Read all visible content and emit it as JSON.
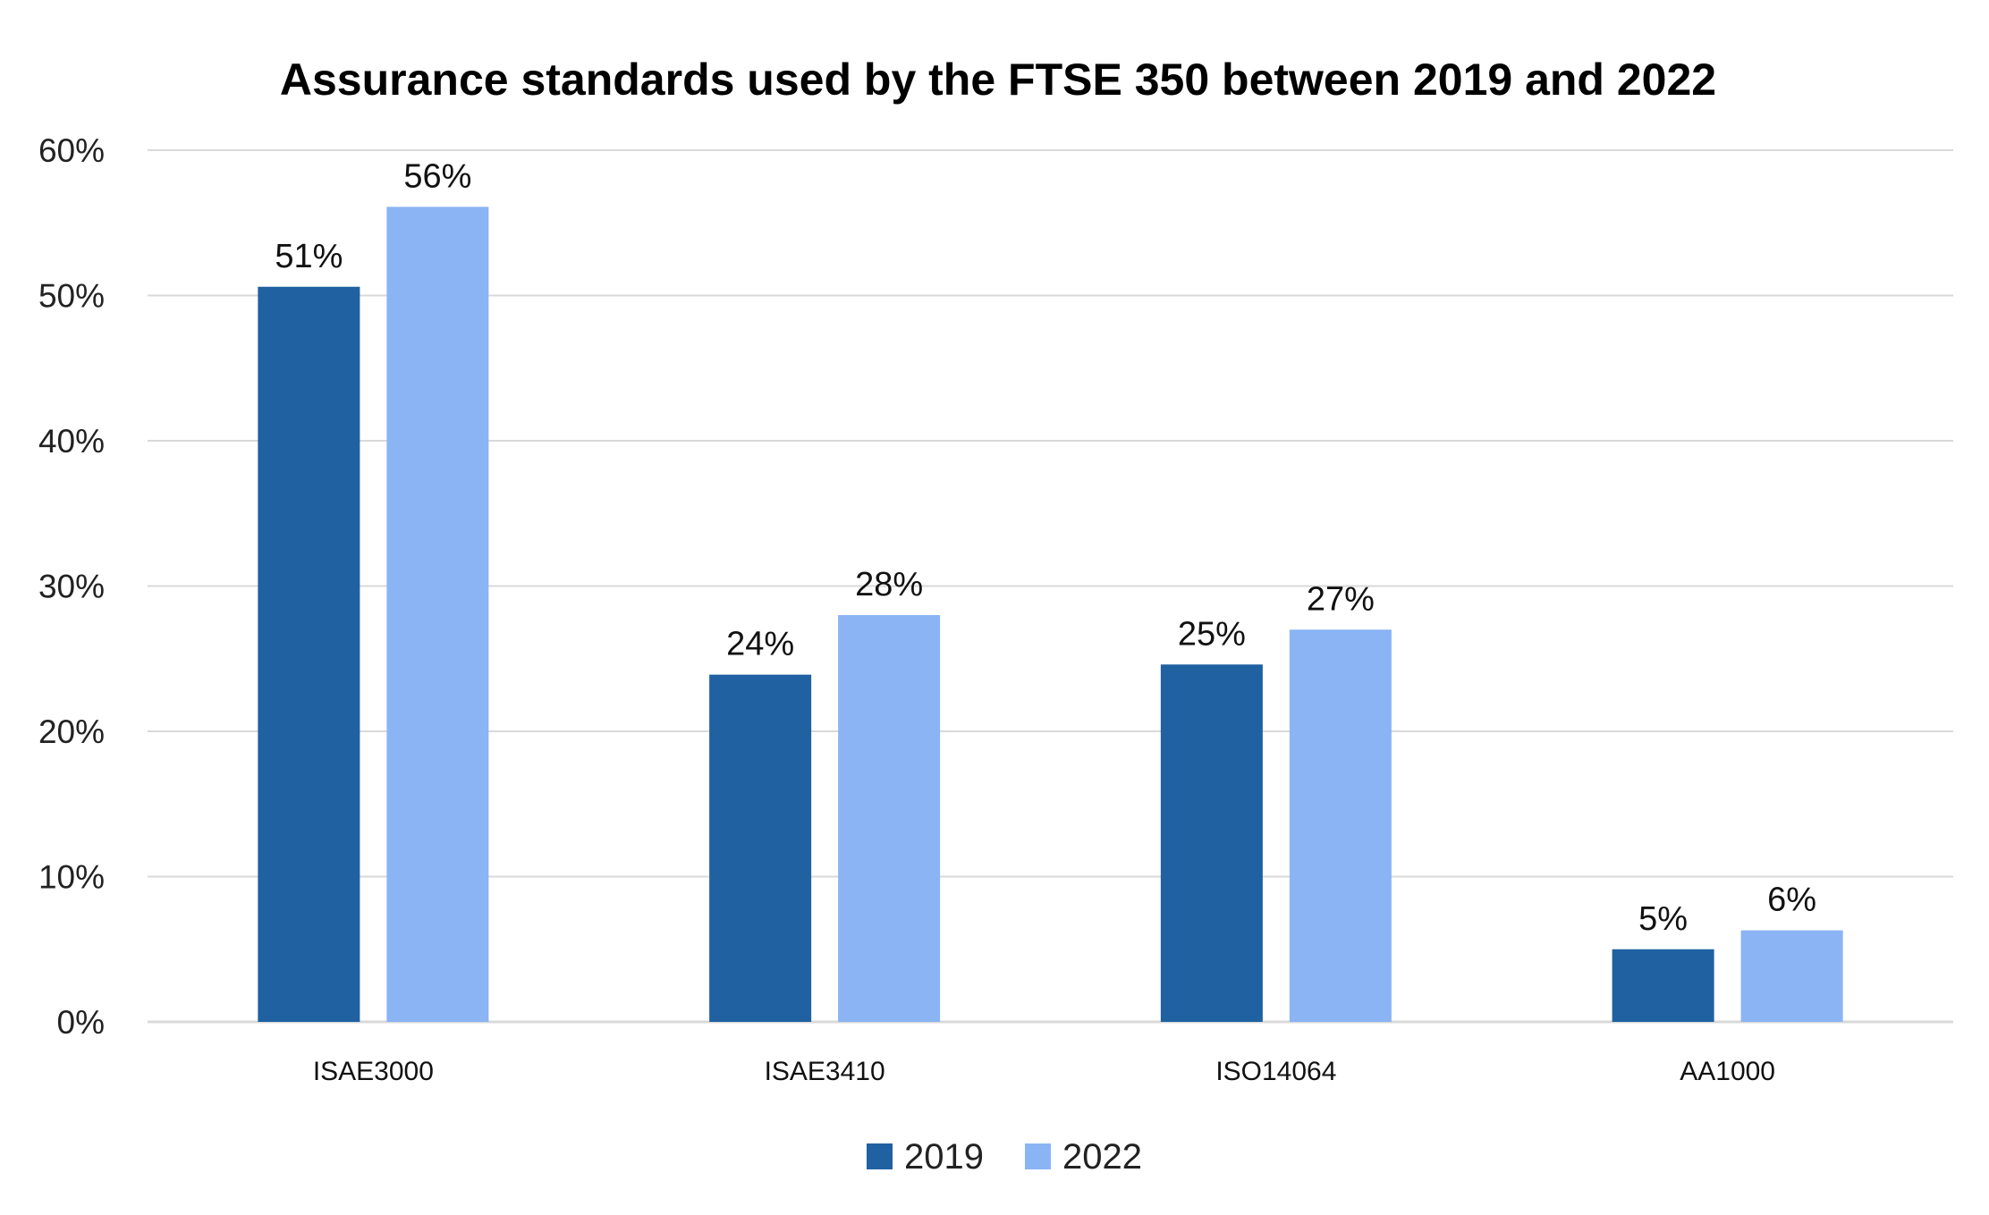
{
  "chart_data": {
    "type": "bar",
    "title": "Assurance standards used by the FTSE 350 between 2019 and 2022",
    "xlabel": "",
    "ylabel": "",
    "categories": [
      "ISAE3000",
      "ISAE3410",
      "ISO14064",
      "AA1000"
    ],
    "series": [
      {
        "name": "2019",
        "values": [
          50.6,
          23.9,
          24.6,
          5.0
        ],
        "labels": [
          "51%",
          "24%",
          "25%",
          "5%"
        ],
        "color": "#1F61A1"
      },
      {
        "name": "2022",
        "values": [
          56.1,
          28.0,
          27.0,
          6.3
        ],
        "labels": [
          "56%",
          "28%",
          "27%",
          "6%"
        ],
        "color": "#8AB4F4"
      }
    ],
    "ylim": [
      0,
      60
    ],
    "yticks": [
      "0%",
      "10%",
      "20%",
      "30%",
      "40%",
      "50%",
      "60%"
    ],
    "grid": true,
    "legend": "bottom"
  }
}
